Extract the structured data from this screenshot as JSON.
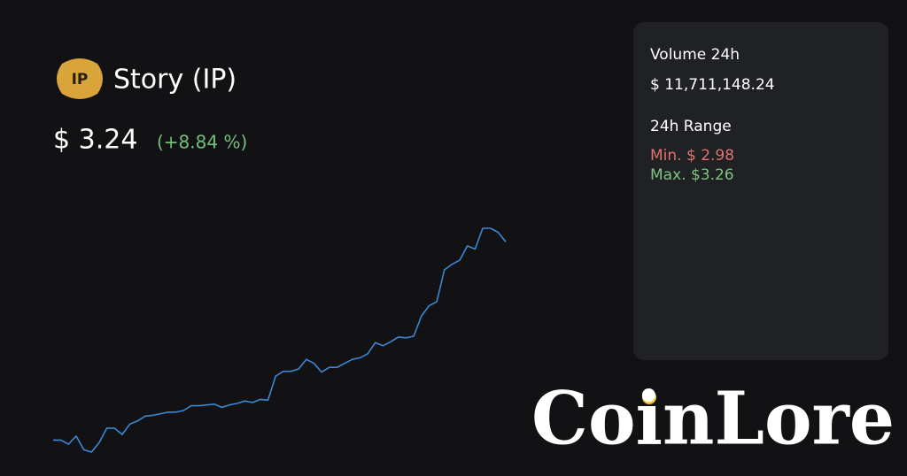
{
  "coin": {
    "logo_text": "IP",
    "name": "Story (IP)",
    "price": "$ 3.24",
    "change": "(+8.84 %)"
  },
  "stats": {
    "volume_label": "Volume 24h",
    "volume": "$ 11,711,148.24",
    "range_label": "24h Range",
    "min": "Min. $ 2.98",
    "max": "Max. $3.26"
  },
  "chart_data": {
    "type": "line",
    "color": "#3b87d4",
    "values": [
      2.995,
      2.995,
      2.99,
      3.0,
      2.983,
      2.98,
      2.992,
      3.01,
      3.01,
      3.002,
      3.015,
      3.019,
      3.025,
      3.026,
      3.028,
      3.03,
      3.03,
      3.032,
      3.038,
      3.038,
      3.039,
      3.04,
      3.036,
      3.039,
      3.041,
      3.044,
      3.042,
      3.046,
      3.045,
      3.075,
      3.081,
      3.081,
      3.084,
      3.096,
      3.091,
      3.08,
      3.086,
      3.086,
      3.091,
      3.096,
      3.098,
      3.103,
      3.117,
      3.113,
      3.118,
      3.124,
      3.123,
      3.125,
      3.15,
      3.163,
      3.168,
      3.208,
      3.215,
      3.22,
      3.238,
      3.234,
      3.26,
      3.26,
      3.255,
      3.243
    ]
  },
  "watermark": "CoinLore"
}
